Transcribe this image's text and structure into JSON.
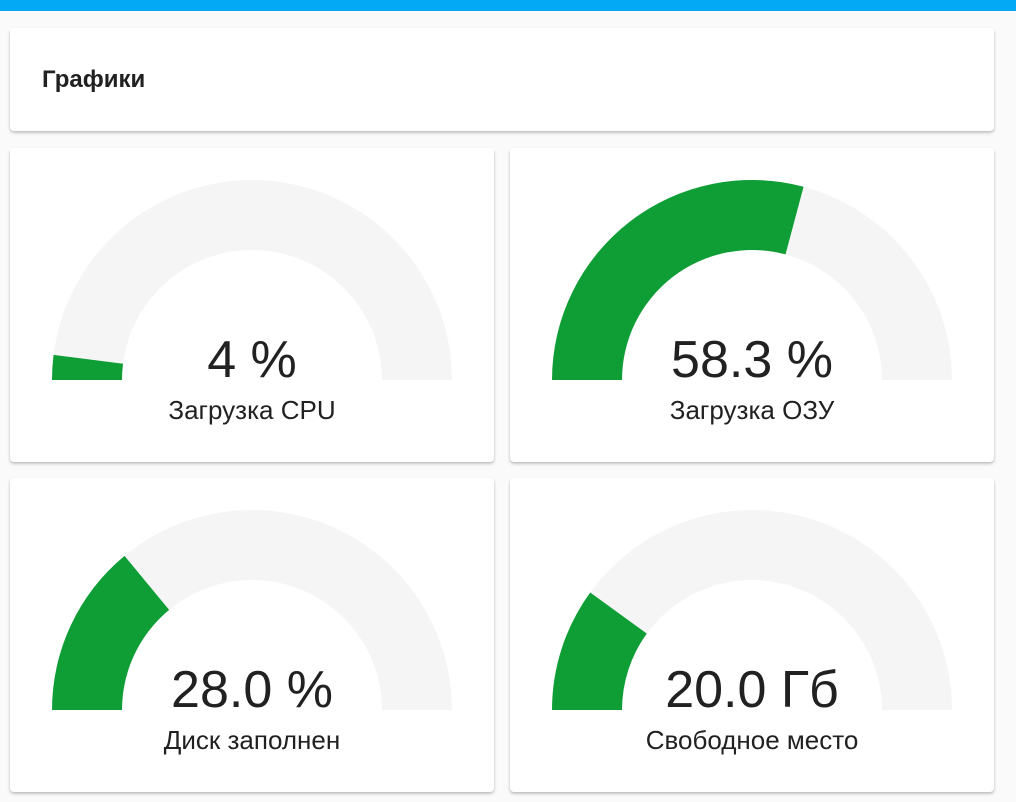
{
  "theme": {
    "top_bar_color": "#03a9f4",
    "gauge_fill_color": "#0f9d35",
    "gauge_track_color": "#f5f5f5"
  },
  "header": {
    "title": "Графики"
  },
  "gauges": [
    {
      "id": "cpu",
      "value_text": "4 %",
      "label": "Загрузка CPU",
      "level": 0.04
    },
    {
      "id": "ram",
      "value_text": "58.3 %",
      "label": "Загрузка ОЗУ",
      "level": 0.583
    },
    {
      "id": "disk",
      "value_text": "28.0 %",
      "label": "Диск заполнен",
      "level": 0.28
    },
    {
      "id": "free",
      "value_text": "20.0 Гб",
      "label": "Свободное место",
      "level": 0.2
    }
  ]
}
